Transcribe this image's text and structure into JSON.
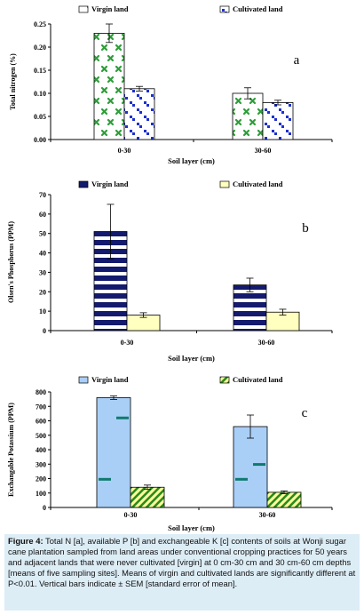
{
  "chart_data": [
    {
      "type": "bar",
      "panel_label": "a",
      "categories": [
        "0-30",
        "30-60"
      ],
      "series": [
        {
          "name": "Virgin land",
          "values": [
            0.23,
            0.1
          ],
          "sem": [
            0.02,
            0.012
          ]
        },
        {
          "name": "Cultivated land",
          "values": [
            0.11,
            0.08
          ],
          "sem": [
            0.005,
            0.005
          ]
        }
      ],
      "xlabel": "Soil layer (cm)",
      "ylabel": "Total nitrogen (%)",
      "ylim": [
        0,
        0.25
      ],
      "yticks": [
        "0.00",
        "0.05",
        "0.10",
        "0.15",
        "0.20",
        "0.25"
      ],
      "legend": "top",
      "grid": false
    },
    {
      "type": "bar",
      "panel_label": "b",
      "categories": [
        "0-30",
        "30-60"
      ],
      "series": [
        {
          "name": "Virgin land",
          "values": [
            51,
            23.5
          ],
          "sem": [
            14,
            3.5
          ]
        },
        {
          "name": "Cultivated land",
          "values": [
            8,
            9.5
          ],
          "sem": [
            1.2,
            1.5
          ]
        }
      ],
      "xlabel": "Soil layer (cm)",
      "ylabel": "Olsen's Phosphorus (PPM)",
      "ylim": [
        0,
        70
      ],
      "yticks": [
        "0",
        "10",
        "20",
        "30",
        "40",
        "50",
        "60",
        "70"
      ],
      "legend": "top",
      "grid": false
    },
    {
      "type": "bar",
      "panel_label": "c",
      "categories": [
        "0-30",
        "30-60"
      ],
      "series": [
        {
          "name": "Virgin land",
          "values": [
            760,
            560
          ],
          "sem": [
            12,
            80
          ]
        },
        {
          "name": "Cultivated land",
          "values": [
            140,
            105
          ],
          "sem": [
            15,
            10
          ]
        }
      ],
      "xlabel": "Soil layer (cm)",
      "ylabel": "Exchangable Potassium (PPM)",
      "ylim": [
        0,
        800
      ],
      "yticks": [
        "0",
        "100",
        "200",
        "300",
        "400",
        "500",
        "600",
        "700",
        "800"
      ],
      "legend": "top",
      "grid": false
    }
  ],
  "caption": {
    "label": "Figure 4:",
    "text": "Total N [a], available P [b] and exchangeable K [c] contents of soils at Wonji sugar cane plantation sampled from land areas under conventional cropping practices for 50 years and adjacent lands that were never cultivated [virgin] at 0 cm-30 cm and 30 cm-60 cm depths [means of five sampling sites]. Means of virgin and cultivated lands are significantly different at P<0.01. Vertical bars indicate ± SEM [standard error of mean]."
  },
  "colors": {
    "a_virgin_fill": "#ffffff",
    "a_virgin_pattern": "#2e9e3a",
    "a_cult_fill": "#ffffff",
    "a_cult_pattern": "#1d2fd0",
    "b_virgin_stripe": "#141a6e",
    "b_cult_fill": "#ffffbf",
    "c_virgin_fill": "#a9cff7",
    "c_virgin_mark": "#0f7a6e",
    "c_cult_green": "#2c8a1e",
    "c_cult_yellow": "#ffff9c"
  }
}
